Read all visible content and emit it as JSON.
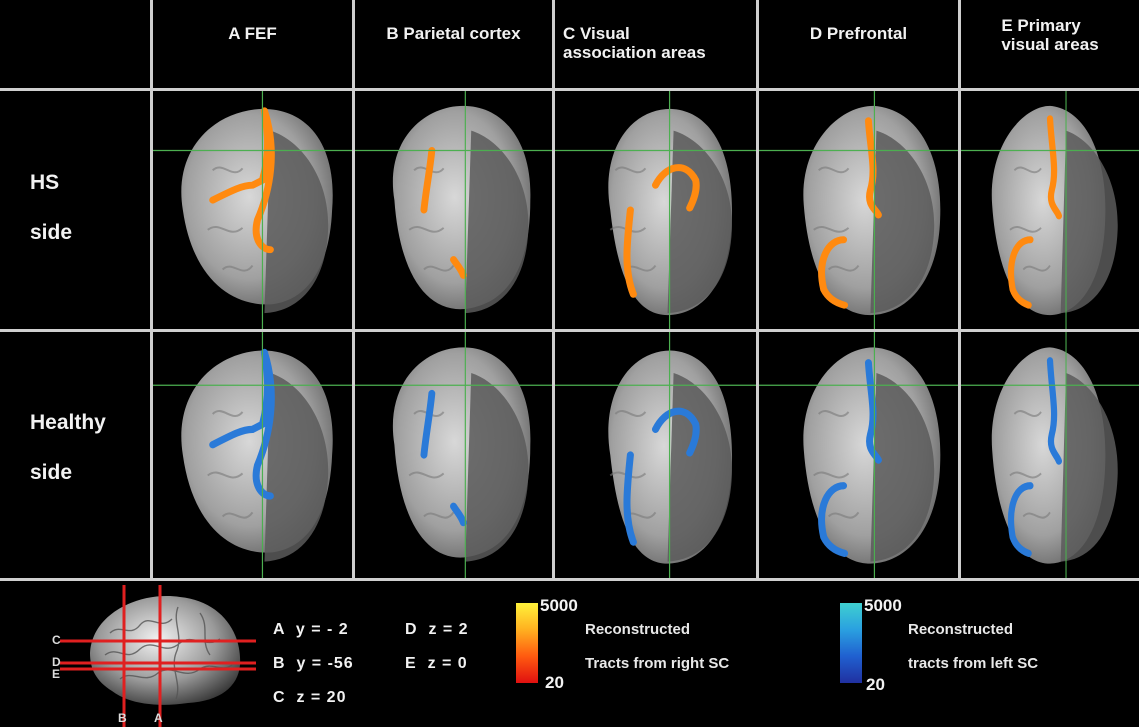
{
  "columns": [
    {
      "label_lines": [
        "A FEF"
      ]
    },
    {
      "label_lines": [
        "B Parietal cortex"
      ]
    },
    {
      "label_lines": [
        "C Visual",
        "association areas"
      ]
    },
    {
      "label_lines": [
        "D Prefrontal"
      ]
    },
    {
      "label_lines": [
        "E Primary",
        "visual areas"
      ]
    }
  ],
  "rows": [
    {
      "label_lines": [
        "HS",
        "side"
      ],
      "tract_color": "#ff8a10"
    },
    {
      "label_lines": [
        "Healthy",
        "side"
      ],
      "tract_color": "#2a7ad8"
    }
  ],
  "coordinates": {
    "a": "A  y = - 2",
    "b": "B  y = -56",
    "c": "C  z = 20",
    "d": "D  z = 2",
    "e": "E  z = 0"
  },
  "brain_slice_labels": {
    "left": [
      "C",
      "D",
      "E"
    ],
    "bottom": [
      "B",
      "A"
    ]
  },
  "legend_right_sc": {
    "max": "5000",
    "min": "20",
    "line1": "Reconstructed",
    "line2": "Tracts from right SC",
    "colors": [
      "#fff23a",
      "#ffb020",
      "#ff5a10",
      "#e01010"
    ]
  },
  "legend_left_sc": {
    "max": "5000",
    "min": "20",
    "line1": "Reconstructed",
    "line2": "tracts from left SC",
    "colors": [
      "#3fd0d0",
      "#2aa0e0",
      "#2060d0",
      "#2030a0"
    ]
  }
}
